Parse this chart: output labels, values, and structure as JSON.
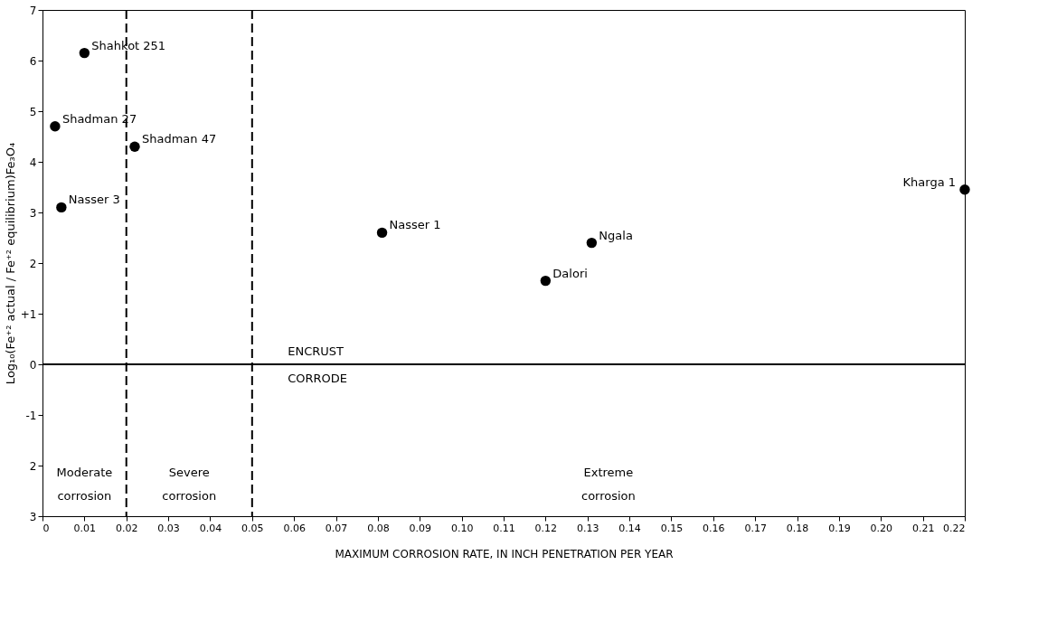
{
  "chart_data": {
    "type": "scatter",
    "xlabel": "MAXIMUM CORROSION RATE, IN INCH PENETRATION PER YEAR",
    "ylabel": "Log₁₀(Fe⁺² actual / Fe⁺² equilibrium)Fe₃O₄",
    "x": [
      0.01,
      0.003,
      0.022,
      0.0045,
      0.081,
      0.131,
      0.12,
      0.22
    ],
    "series": [
      {
        "color": "#000000",
        "values": [
          6.15,
          4.7,
          4.3,
          3.1,
          2.6,
          2.4,
          1.65,
          3.45
        ]
      }
    ],
    "marker": "circle",
    "xlim": [
      0,
      0.22
    ],
    "xticks": [
      0,
      0.01,
      0.02,
      0.03,
      0.04,
      0.05,
      0.06,
      0.07,
      0.08,
      0.09,
      {
        "value": 0.1,
        "label": "0.10"
      },
      0.11,
      0.12,
      0.13,
      0.14,
      0.15,
      0.16,
      0.17,
      0.18,
      0.19,
      {
        "value": 0.2,
        "label": "0.20"
      },
      0.21,
      0.22
    ],
    "ylim": [
      -3,
      7
    ],
    "yticks": [
      {
        "value": -3,
        "label": "3"
      },
      {
        "value": -2,
        "label": "2"
      },
      -1,
      0,
      {
        "value": 1,
        "label": "+1"
      },
      2,
      3,
      4,
      5,
      6,
      7
    ],
    "grid": false,
    "ref_lines": [
      {
        "axis": "x",
        "value": 0.02,
        "line_style": "dashed"
      },
      {
        "axis": "x",
        "value": 0.05,
        "line_style": "dashed"
      },
      {
        "axis": "y",
        "value": 0,
        "line_style": "solid"
      }
    ],
    "annotations": [
      {
        "text": "Shahkot 251",
        "x": 0.01,
        "y": 6.15
      },
      {
        "text": "Shadman 27",
        "x": 0.003,
        "y": 4.7
      },
      {
        "text": "Shadman 47",
        "x": 0.022,
        "y": 4.3
      },
      {
        "text": "Nasser 3",
        "x": 0.0045,
        "y": 3.1
      },
      {
        "text": "Nasser 1",
        "x": 0.081,
        "y": 2.6
      },
      {
        "text": "Ngala",
        "x": 0.131,
        "y": 2.4
      },
      {
        "text": "Dalori",
        "x": 0.12,
        "y": 1.65
      },
      {
        "text": "Kharga 1",
        "x": 0.22,
        "y": 3.45
      },
      "ENCRUST",
      "CORRODE",
      "Moderate corrosion",
      "Severe corrosion",
      "Extreme corrosion"
    ]
  }
}
